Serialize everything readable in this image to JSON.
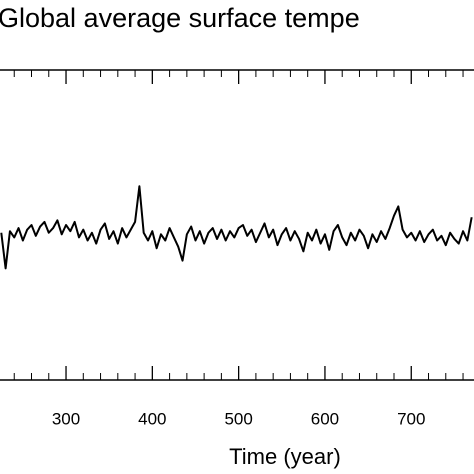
{
  "chart_data": {
    "type": "line",
    "title": "Global average surface tempe",
    "x_label": "Time (year)",
    "x": [
      225,
      230,
      235,
      240,
      245,
      250,
      255,
      260,
      265,
      270,
      275,
      280,
      285,
      290,
      295,
      300,
      305,
      310,
      315,
      320,
      325,
      330,
      335,
      340,
      345,
      350,
      355,
      360,
      365,
      370,
      375,
      380,
      385,
      390,
      395,
      400,
      405,
      410,
      415,
      420,
      425,
      430,
      435,
      440,
      445,
      450,
      455,
      460,
      465,
      470,
      475,
      480,
      485,
      490,
      495,
      500,
      505,
      510,
      515,
      520,
      525,
      530,
      535,
      540,
      545,
      550,
      555,
      560,
      565,
      570,
      575,
      580,
      585,
      590,
      595,
      600,
      605,
      610,
      615,
      620,
      625,
      630,
      635,
      640,
      645,
      650,
      655,
      660,
      665,
      670,
      675,
      680,
      685,
      690,
      695,
      700,
      705,
      710,
      715,
      720,
      725,
      730,
      735,
      740,
      745,
      750,
      755,
      760,
      765,
      770
    ],
    "series": [
      {
        "color": "#000000",
        "values": [
          -0.05,
          -0.28,
          -0.04,
          -0.08,
          -0.02,
          -0.1,
          -0.03,
          0.0,
          -0.07,
          -0.01,
          0.02,
          -0.05,
          -0.02,
          0.03,
          -0.06,
          0.0,
          -0.04,
          0.02,
          -0.08,
          -0.03,
          -0.1,
          -0.05,
          -0.12,
          -0.03,
          0.01,
          -0.09,
          -0.04,
          -0.12,
          -0.02,
          -0.08,
          -0.03,
          0.02,
          0.25,
          -0.05,
          -0.1,
          -0.04,
          -0.15,
          -0.06,
          -0.1,
          -0.02,
          -0.08,
          -0.14,
          -0.23,
          -0.06,
          -0.01,
          -0.1,
          -0.04,
          -0.12,
          -0.05,
          -0.02,
          -0.09,
          -0.03,
          -0.1,
          -0.04,
          -0.08,
          -0.02,
          0.0,
          -0.07,
          -0.03,
          -0.11,
          -0.05,
          0.01,
          -0.08,
          -0.03,
          -0.13,
          -0.06,
          -0.02,
          -0.1,
          -0.04,
          -0.09,
          -0.17,
          -0.05,
          -0.1,
          -0.03,
          -0.12,
          -0.06,
          -0.16,
          -0.04,
          0.0,
          -0.08,
          -0.13,
          -0.05,
          -0.1,
          -0.03,
          -0.07,
          -0.15,
          -0.06,
          -0.11,
          -0.04,
          -0.09,
          -0.02,
          0.06,
          0.12,
          -0.03,
          -0.08,
          -0.05,
          -0.1,
          -0.04,
          -0.11,
          -0.06,
          -0.03,
          -0.1,
          -0.07,
          -0.13,
          -0.05,
          -0.09,
          -0.12,
          -0.04,
          -0.1,
          0.05
        ]
      }
    ],
    "xlim": [
      223.5,
      772.7
    ],
    "ylim": [
      -1,
      1
    ],
    "xticks": [
      300,
      400,
      500,
      600,
      700
    ],
    "xminorticks": [
      240,
      260,
      280,
      320,
      340,
      360,
      380,
      420,
      440,
      460,
      480,
      520,
      540,
      560,
      580,
      620,
      640,
      660,
      680,
      720,
      740,
      760
    ]
  }
}
